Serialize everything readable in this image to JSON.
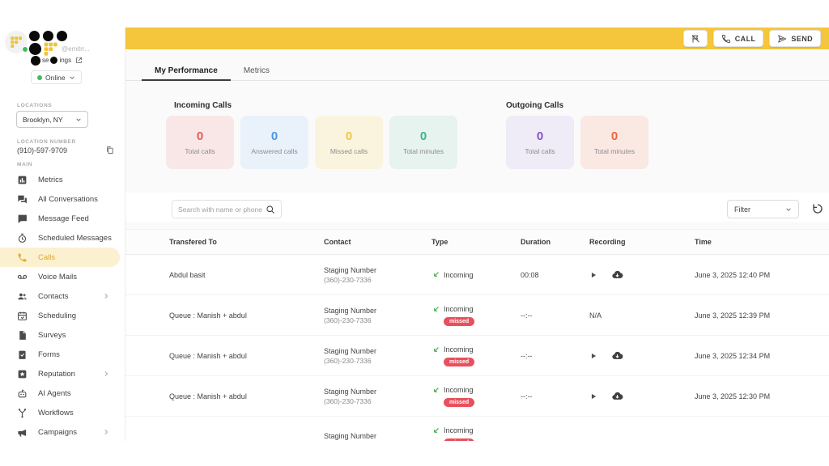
{
  "colors": {
    "topbar_yellow": "#F5C63C",
    "selected_item_bg": "#FBF0CF",
    "selected_item_fg": "#DCA92F",
    "missed_badge": "#E8505B",
    "incoming_arrow": "#4CAF50",
    "logo_yellow": "#F2C230",
    "online_green": "#3DBE5B"
  },
  "topbar": {
    "call_label": "CALL",
    "send_label": "SEND"
  },
  "user_panel": {
    "email": "@emitrr...",
    "settings_fragments": [
      "se",
      "ings"
    ],
    "status_label": "Online"
  },
  "sidebar": {
    "locations_label": "LOCATIONS",
    "location_value": "Brooklyn, NY",
    "location_number_label": "LOCATION NUMBER",
    "location_number": "(910)-597-9709",
    "main_label": "MAIN",
    "items": [
      {
        "label": "Metrics",
        "icon": "metrics-icon",
        "selected": false,
        "has_submenu": false
      },
      {
        "label": "All Conversations",
        "icon": "conversations-icon",
        "selected": false,
        "has_submenu": false
      },
      {
        "label": "Message Feed",
        "icon": "message-feed-icon",
        "selected": false,
        "has_submenu": false
      },
      {
        "label": "Scheduled Messages",
        "icon": "scheduled-messages-icon",
        "selected": false,
        "has_submenu": false
      },
      {
        "label": "Calls",
        "icon": "calls-icon",
        "selected": true,
        "has_submenu": false
      },
      {
        "label": "Voice Mails",
        "icon": "voicemail-icon",
        "selected": false,
        "has_submenu": false
      },
      {
        "label": "Contacts",
        "icon": "contacts-icon",
        "selected": false,
        "has_submenu": true
      },
      {
        "label": "Scheduling",
        "icon": "scheduling-icon",
        "selected": false,
        "has_submenu": false
      },
      {
        "label": "Surveys",
        "icon": "surveys-icon",
        "selected": false,
        "has_submenu": false
      },
      {
        "label": "Forms",
        "icon": "forms-icon",
        "selected": false,
        "has_submenu": false
      },
      {
        "label": "Reputation",
        "icon": "reputation-icon",
        "selected": false,
        "has_submenu": true
      },
      {
        "label": "AI Agents",
        "icon": "ai-agents-icon",
        "selected": false,
        "has_submenu": false
      },
      {
        "label": "Workflows",
        "icon": "workflows-icon",
        "selected": false,
        "has_submenu": false
      },
      {
        "label": "Campaigns",
        "icon": "campaigns-icon",
        "selected": false,
        "has_submenu": true
      }
    ]
  },
  "tabs": [
    {
      "label": "My Performance",
      "active": true
    },
    {
      "label": "Metrics",
      "active": false
    }
  ],
  "stats": {
    "incoming": {
      "title": "Incoming Calls",
      "cards": [
        {
          "value": "0",
          "label": "Total calls",
          "color": "#E15B5B",
          "bg": "#F9E7E7"
        },
        {
          "value": "0",
          "label": "Answered calls",
          "color": "#4B96E6",
          "bg": "#E9F2FB"
        },
        {
          "value": "0",
          "label": "Missed calls",
          "color": "#EDC84A",
          "bg": "#FAF4DF"
        },
        {
          "value": "0",
          "label": "Total minutes",
          "color": "#3DB38C",
          "bg": "#E6F3EF"
        }
      ]
    },
    "outgoing": {
      "title": "Outgoing Calls",
      "cards": [
        {
          "value": "0",
          "label": "Total calls",
          "color": "#8356C9",
          "bg": "#EFEBF7"
        },
        {
          "value": "0",
          "label": "Total minutes",
          "color": "#F2603C",
          "bg": "#FAE8E3"
        }
      ]
    }
  },
  "toolbar": {
    "search_placeholder": "Search with name or phone",
    "filter_label": "Filter"
  },
  "table": {
    "columns": [
      "Transfered To",
      "Contact",
      "Type",
      "Duration",
      "Recording",
      "Time"
    ],
    "missed_badge_label": "missed",
    "recording_na_text": "N/A",
    "rows": [
      {
        "transferred_to": "Abdul basit",
        "contact_name": "Staging Number",
        "contact_phone": "(360)-230-7336",
        "type_label": "Incoming",
        "missed": false,
        "duration": "00:08",
        "recording": "player",
        "time": "June 3, 2025 12:40 PM"
      },
      {
        "transferred_to": "Queue : Manish + abdul",
        "contact_name": "Staging Number",
        "contact_phone": "(360)-230-7336",
        "type_label": "Incoming",
        "missed": true,
        "duration": "--:--",
        "recording": "na",
        "time": "June 3, 2025 12:39 PM"
      },
      {
        "transferred_to": "Queue : Manish + abdul",
        "contact_name": "Staging Number",
        "contact_phone": "(360)-230-7336",
        "type_label": "Incoming",
        "missed": true,
        "duration": "--:--",
        "recording": "player",
        "time": "June 3, 2025 12:34 PM"
      },
      {
        "transferred_to": "Queue : Manish + abdul",
        "contact_name": "Staging Number",
        "contact_phone": "(360)-230-7336",
        "type_label": "Incoming",
        "missed": true,
        "duration": "--:--",
        "recording": "player",
        "time": "June 3, 2025 12:30 PM"
      },
      {
        "transferred_to": "",
        "contact_name": "Staging Number",
        "contact_phone": "",
        "type_label": "Incoming",
        "missed": true,
        "duration": "",
        "recording": "none",
        "time": ""
      }
    ]
  }
}
